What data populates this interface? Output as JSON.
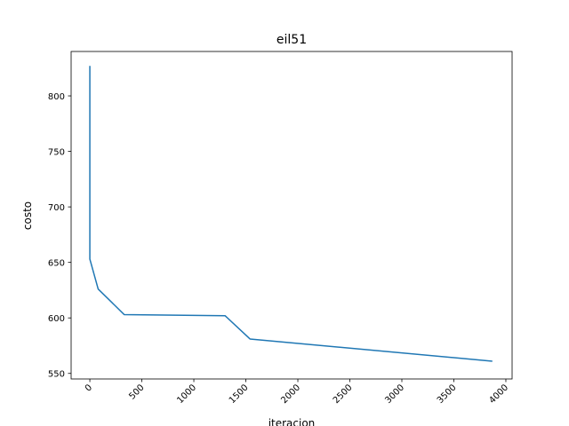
{
  "chart_data": {
    "type": "line",
    "title": "eil51",
    "xlabel": "iteracion",
    "ylabel": "costo",
    "xlim": [
      -180,
      4060
    ],
    "ylim": [
      545,
      840
    ],
    "xticks": [
      0,
      500,
      1000,
      1500,
      2000,
      2500,
      3000,
      3500,
      4000
    ],
    "yticks": [
      550,
      600,
      650,
      700,
      750,
      800
    ],
    "grid": false,
    "series": [
      {
        "color": "#1f77b4",
        "x": [
          0,
          0,
          0,
          80,
          330,
          1300,
          1540,
          3870
        ],
        "y": [
          827,
          700,
          653,
          626,
          603,
          602,
          581,
          561
        ]
      }
    ]
  }
}
